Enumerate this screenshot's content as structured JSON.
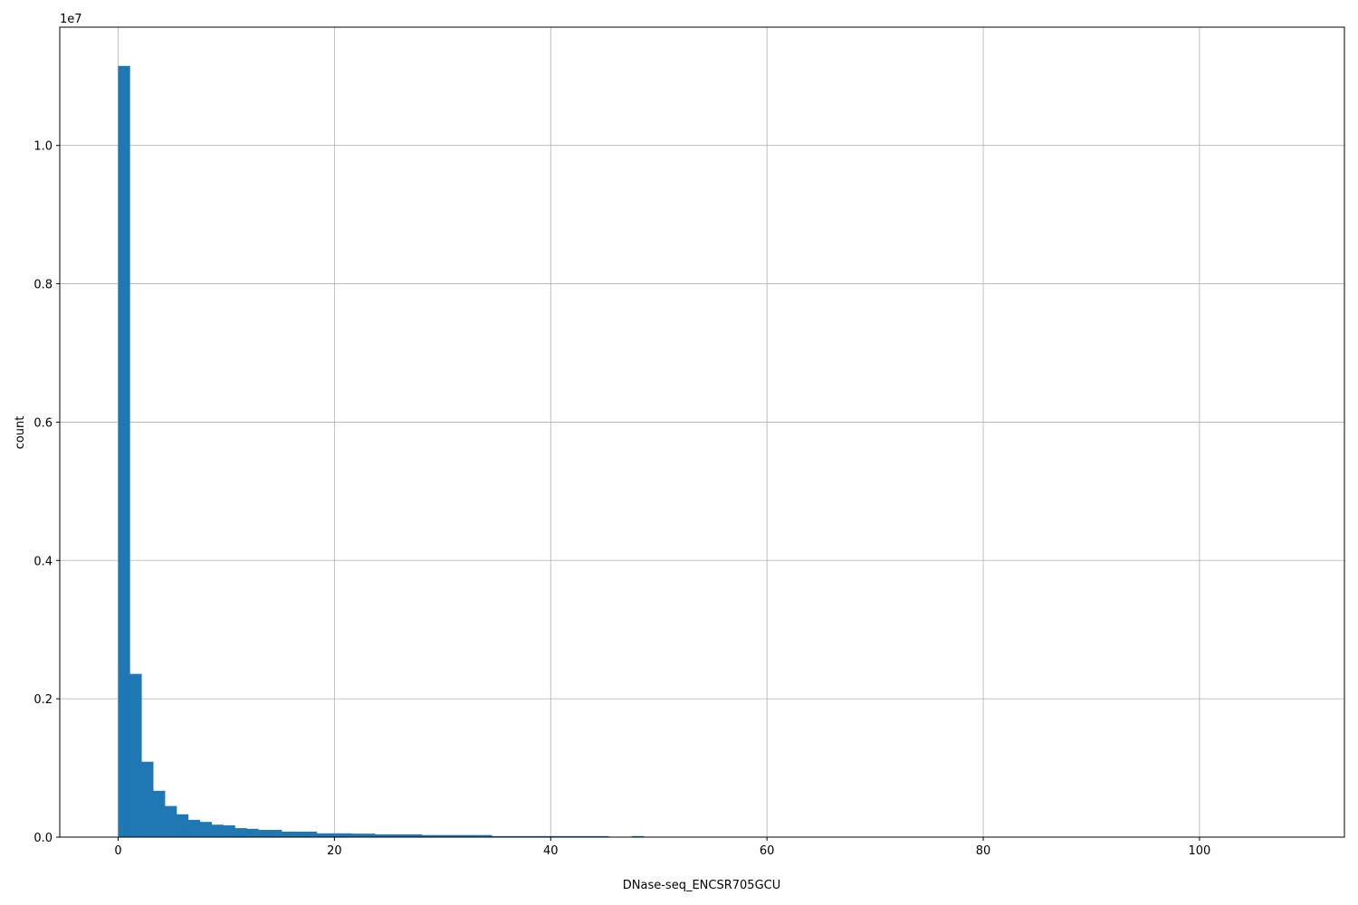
{
  "chart_data": {
    "type": "bar",
    "subtype": "histogram",
    "title": "",
    "xlabel": "DNase-seq_ENCSR705GCU",
    "ylabel": "count",
    "y_offset_label": "1e7",
    "xlim": [
      -5.4,
      113.4
    ],
    "ylim": [
      0,
      11710000
    ],
    "x_ticks": [
      0,
      20,
      40,
      60,
      80,
      100
    ],
    "x_tick_labels": [
      "0",
      "20",
      "40",
      "60",
      "80",
      "100"
    ],
    "y_ticks": [
      0,
      2000000,
      4000000,
      6000000,
      8000000,
      10000000
    ],
    "y_tick_labels": [
      "0.0",
      "0.2",
      "0.4",
      "0.6",
      "0.8",
      "1.0"
    ],
    "grid": true,
    "bin_start": 0,
    "bin_width": 1.08,
    "values": [
      11150000,
      2360000,
      1090000,
      670000,
      450000,
      330000,
      250000,
      220000,
      180000,
      170000,
      130000,
      120000,
      105000,
      105000,
      80000,
      80000,
      80000,
      55000,
      55000,
      55000,
      50000,
      50000,
      40000,
      40000,
      40000,
      40000,
      30000,
      30000,
      30000,
      30000,
      30000,
      30000,
      15000,
      15000,
      15000,
      15000,
      15000,
      15000,
      15000,
      15000,
      15000,
      15000,
      0,
      0,
      15000,
      0,
      0,
      0,
      0,
      0,
      0,
      0,
      0,
      0,
      0,
      0,
      0,
      0,
      0,
      0,
      0,
      0,
      0,
      0,
      0,
      0,
      0,
      0,
      0,
      0,
      0,
      0,
      0,
      0,
      0,
      0,
      0,
      0,
      0,
      0,
      0,
      0,
      0,
      0,
      0,
      0,
      0,
      0,
      0,
      0,
      0,
      0,
      0,
      0,
      0,
      0,
      0,
      0,
      0,
      0
    ],
    "colors": {
      "bar": "#1f77b4",
      "grid": "#b0b0b0"
    }
  }
}
